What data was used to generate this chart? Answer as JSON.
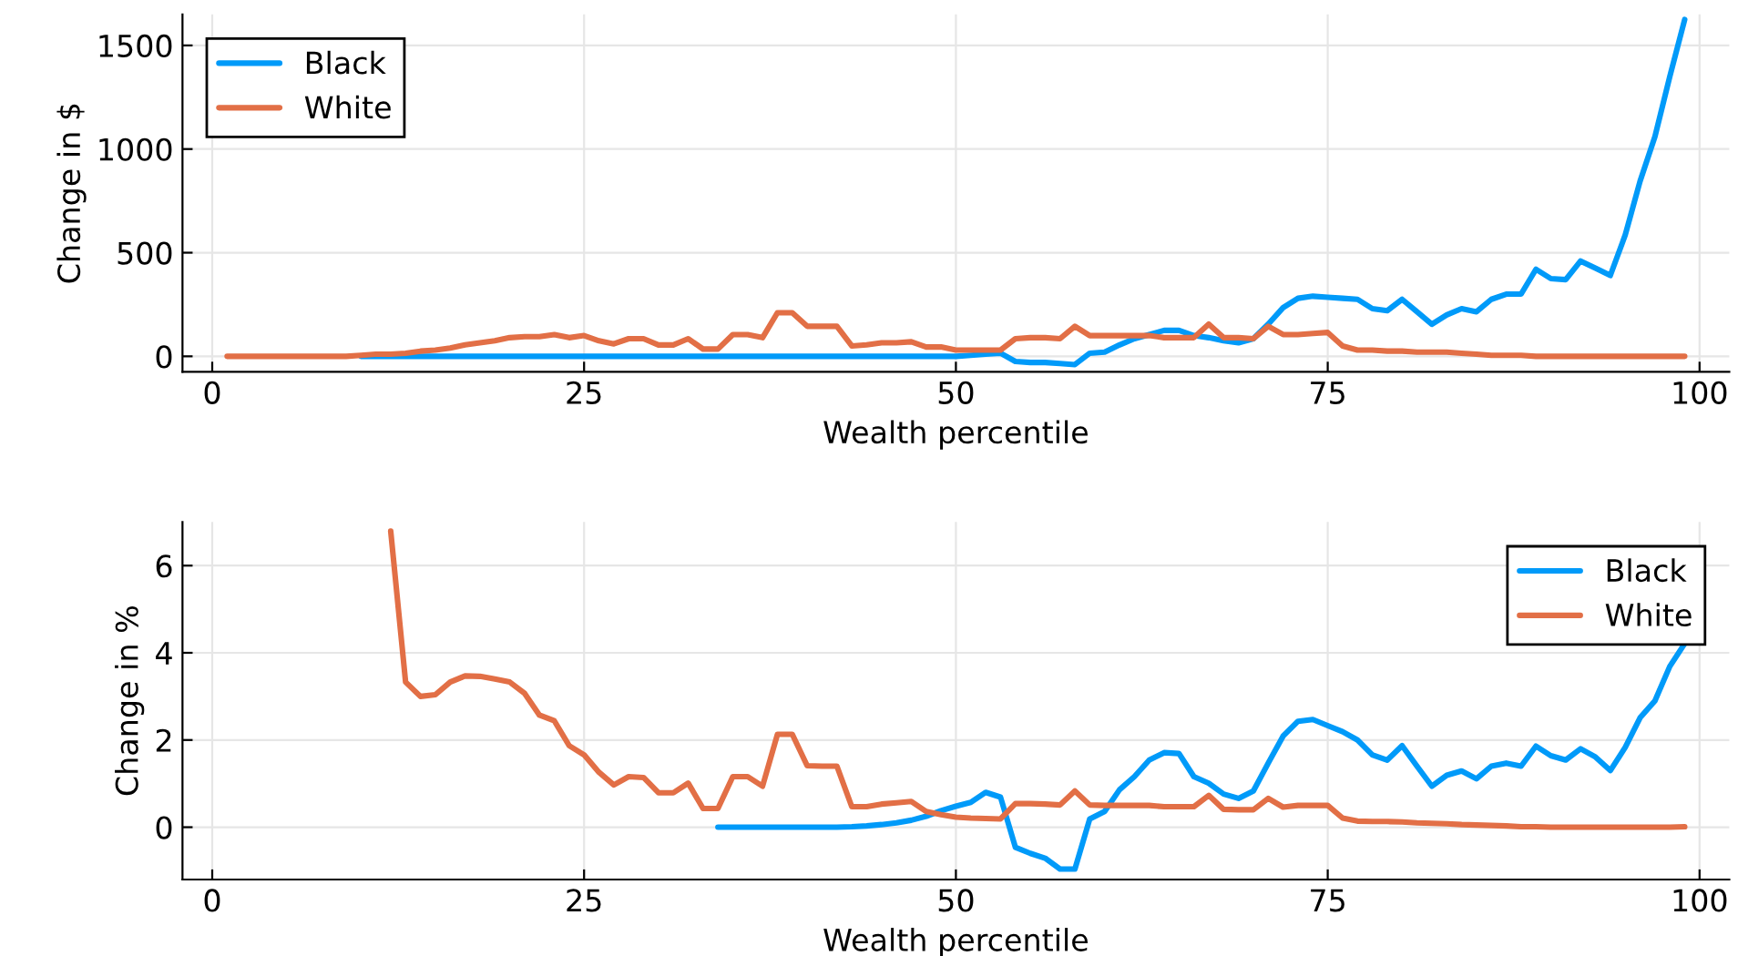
{
  "chart_data": [
    {
      "type": "line",
      "xlabel": "Wealth percentile",
      "ylabel": "Change in $",
      "xlim": [
        -2,
        102
      ],
      "ylim": [
        -75,
        1650
      ],
      "xticks": [
        0,
        25,
        50,
        75,
        100
      ],
      "yticks": [
        0,
        500,
        1000,
        1500
      ],
      "grid": true,
      "legend": "top left",
      "x": [
        1,
        2,
        3,
        4,
        5,
        6,
        7,
        8,
        9,
        10,
        11,
        12,
        13,
        14,
        15,
        16,
        17,
        18,
        19,
        20,
        21,
        22,
        23,
        24,
        25,
        26,
        27,
        28,
        29,
        30,
        31,
        32,
        33,
        34,
        35,
        36,
        37,
        38,
        39,
        40,
        41,
        42,
        43,
        44,
        45,
        46,
        47,
        48,
        49,
        50,
        51,
        52,
        53,
        54,
        55,
        56,
        57,
        58,
        59,
        60,
        61,
        62,
        63,
        64,
        65,
        66,
        67,
        68,
        69,
        70,
        71,
        72,
        73,
        74,
        75,
        76,
        77,
        78,
        79,
        80,
        81,
        82,
        83,
        84,
        85,
        86,
        87,
        88,
        89,
        90,
        91,
        92,
        93,
        94,
        95,
        96,
        97,
        98,
        99
      ],
      "series": [
        {
          "name": "Black",
          "color": "#009af9",
          "values": [
            null,
            null,
            null,
            null,
            null,
            null,
            null,
            null,
            null,
            0,
            0,
            0,
            0,
            0,
            0,
            0,
            0,
            0,
            0,
            0,
            0,
            0,
            0,
            0,
            0,
            0,
            0,
            0,
            0,
            0,
            0,
            0,
            0,
            0,
            0,
            0,
            0,
            0,
            0,
            0,
            0,
            0,
            0,
            0,
            0,
            0,
            0,
            0,
            0,
            0,
            5,
            10,
            15,
            -25,
            -30,
            -30,
            -35,
            -40,
            15,
            20,
            55,
            85,
            105,
            125,
            125,
            100,
            90,
            75,
            65,
            85,
            155,
            235,
            280,
            290,
            285,
            280,
            275,
            230,
            220,
            275,
            215,
            155,
            200,
            230,
            215,
            275,
            300,
            300,
            420,
            375,
            370,
            460,
            425,
            390,
            585,
            845,
            1060,
            1350,
            1625
          ]
        },
        {
          "name": "White",
          "color": "#e26f46",
          "values": [
            0,
            0,
            0,
            0,
            0,
            0,
            0,
            0,
            0,
            5,
            10,
            10,
            15,
            25,
            30,
            40,
            55,
            65,
            75,
            90,
            95,
            95,
            105,
            90,
            100,
            75,
            60,
            85,
            85,
            55,
            55,
            85,
            35,
            35,
            105,
            105,
            90,
            210,
            210,
            145,
            145,
            145,
            50,
            55,
            65,
            65,
            70,
            45,
            45,
            30,
            30,
            30,
            30,
            85,
            90,
            90,
            85,
            145,
            100,
            100,
            100,
            100,
            100,
            90,
            90,
            90,
            155,
            90,
            90,
            85,
            145,
            105,
            105,
            110,
            115,
            50,
            30,
            30,
            25,
            25,
            20,
            20,
            20,
            15,
            10,
            5,
            5,
            5,
            0,
            0,
            0,
            0,
            0,
            0,
            0,
            0,
            0,
            0,
            0
          ]
        }
      ]
    },
    {
      "type": "line",
      "xlabel": "Wealth percentile",
      "ylabel": "Change in %",
      "xlim": [
        -2,
        102
      ],
      "ylim": [
        -1.2,
        7.0
      ],
      "xticks": [
        0,
        25,
        50,
        75,
        100
      ],
      "yticks": [
        0,
        2,
        4,
        6
      ],
      "grid": true,
      "legend": "top right",
      "series": [
        {
          "name": "Black",
          "color": "#009af9",
          "x": [
            34,
            35,
            36,
            37,
            38,
            39,
            40,
            41,
            42,
            43,
            44,
            45,
            46,
            47,
            48,
            49,
            50,
            51,
            52,
            53,
            54,
            55,
            56,
            57,
            58,
            59,
            60,
            61,
            62,
            63,
            64,
            65,
            66,
            67,
            68,
            69,
            70,
            71,
            72,
            73,
            74,
            75,
            76,
            77,
            78,
            79,
            80,
            81,
            82,
            83,
            84,
            85,
            86,
            87,
            88,
            89,
            90,
            91,
            92,
            93,
            94,
            95,
            96,
            97,
            98,
            99
          ],
          "values": [
            0,
            0,
            0,
            0,
            0,
            0,
            0,
            0,
            0,
            0.01,
            0.03,
            0.06,
            0.1,
            0.16,
            0.25,
            0.38,
            0.48,
            0.57,
            0.8,
            0.69,
            -0.46,
            -0.6,
            -0.71,
            -0.96,
            -0.96,
            0.19,
            0.36,
            0.86,
            1.16,
            1.54,
            1.71,
            1.69,
            1.16,
            1.01,
            0.76,
            0.66,
            0.83,
            1.47,
            2.09,
            2.43,
            2.47,
            2.33,
            2.19,
            2.0,
            1.66,
            1.54,
            1.87,
            1.4,
            0.94,
            1.19,
            1.29,
            1.11,
            1.4,
            1.47,
            1.4,
            1.86,
            1.64,
            1.54,
            1.8,
            1.61,
            1.3,
            1.83,
            2.51,
            2.9,
            3.69,
            4.21
          ]
        },
        {
          "name": "White",
          "color": "#e26f46",
          "x": [
            12,
            13,
            14,
            15,
            16,
            17,
            18,
            19,
            20,
            21,
            22,
            23,
            24,
            25,
            26,
            27,
            28,
            29,
            30,
            31,
            32,
            33,
            34,
            35,
            36,
            37,
            38,
            39,
            40,
            41,
            42,
            43,
            44,
            45,
            46,
            47,
            48,
            49,
            50,
            51,
            52,
            53,
            54,
            55,
            56,
            57,
            58,
            59,
            60,
            61,
            62,
            63,
            64,
            65,
            66,
            67,
            68,
            69,
            70,
            71,
            72,
            73,
            74,
            75,
            76,
            77,
            78,
            79,
            80,
            81,
            82,
            83,
            84,
            85,
            86,
            87,
            88,
            89,
            90,
            91,
            92,
            93,
            94,
            95,
            96,
            97,
            98,
            99
          ],
          "values": [
            6.79,
            3.33,
            3.0,
            3.04,
            3.33,
            3.47,
            3.46,
            3.4,
            3.33,
            3.07,
            2.57,
            2.44,
            1.87,
            1.66,
            1.26,
            0.97,
            1.16,
            1.14,
            0.79,
            0.79,
            1.01,
            0.43,
            0.43,
            1.16,
            1.16,
            0.94,
            2.13,
            2.13,
            1.41,
            1.4,
            1.4,
            0.47,
            0.47,
            0.53,
            0.56,
            0.59,
            0.36,
            0.29,
            0.23,
            0.21,
            0.2,
            0.19,
            0.54,
            0.54,
            0.53,
            0.51,
            0.83,
            0.51,
            0.5,
            0.5,
            0.5,
            0.5,
            0.47,
            0.47,
            0.47,
            0.73,
            0.41,
            0.4,
            0.4,
            0.66,
            0.46,
            0.5,
            0.5,
            0.5,
            0.21,
            0.14,
            0.13,
            0.13,
            0.12,
            0.1,
            0.09,
            0.08,
            0.06,
            0.05,
            0.04,
            0.03,
            0.01,
            0.01,
            0,
            0,
            0,
            0,
            0,
            0,
            0,
            0,
            0,
            0.01
          ]
        }
      ]
    }
  ]
}
